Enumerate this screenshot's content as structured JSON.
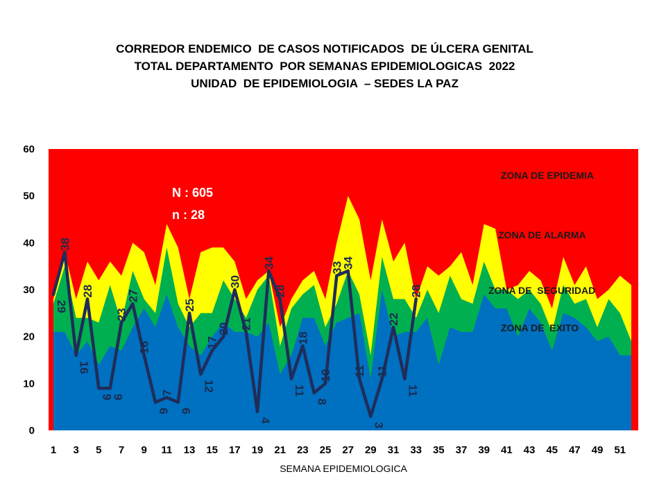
{
  "chart_data": {
    "type": "area",
    "title": [
      "CORREDOR ENDEMICO  DE CASOS NOTIFICADOS  DE ÚLCERA GENITAL",
      "TOTAL DEPARTAMENTO  POR SEMANAS EPIDEMIOLOGICAS  2022",
      "UNIDAD  DE EPIDEMIOLOGIA  – SEDES LA PAZ"
    ],
    "xlabel": "SEMANA EPIDEMIOLOGICA",
    "ylabel": "",
    "ylim": [
      0,
      60
    ],
    "yticks": [
      0,
      10,
      20,
      30,
      40,
      50,
      60
    ],
    "xticks": [
      1,
      3,
      5,
      7,
      9,
      11,
      13,
      15,
      17,
      19,
      21,
      23,
      25,
      27,
      29,
      31,
      33,
      35,
      37,
      39,
      41,
      43,
      45,
      47,
      49,
      51
    ],
    "weeks": [
      1,
      2,
      3,
      4,
      5,
      6,
      7,
      8,
      9,
      10,
      11,
      12,
      13,
      14,
      15,
      16,
      17,
      18,
      19,
      20,
      21,
      22,
      23,
      24,
      25,
      26,
      27,
      28,
      29,
      30,
      31,
      32,
      33,
      34,
      35,
      36,
      37,
      38,
      39,
      40,
      41,
      42,
      43,
      44,
      45,
      46,
      47,
      48,
      49,
      50,
      51,
      52
    ],
    "zones": [
      {
        "name": "ZONA DE  EXITO",
        "color": "#0070c0",
        "values": [
          21,
          21,
          16,
          19,
          14,
          18,
          17,
          22,
          26,
          22,
          29,
          22,
          18,
          16,
          20,
          23,
          21,
          21,
          20,
          23,
          12,
          16,
          24,
          24,
          18,
          23,
          24,
          25,
          11,
          30,
          20,
          21,
          21,
          24,
          14,
          22,
          21,
          21,
          29,
          26,
          26,
          20,
          26,
          23,
          17,
          25,
          24,
          22,
          19,
          20,
          16,
          16
        ]
      },
      {
        "name": "ZONA DE  SEGURIDAD",
        "color": "#00b050",
        "values": [
          27,
          35,
          24,
          24,
          23,
          31,
          23,
          34,
          28,
          25,
          39,
          27,
          22,
          25,
          25,
          32,
          28,
          24,
          30,
          33,
          18,
          26,
          29,
          31,
          22,
          27,
          34,
          29,
          16,
          37,
          28,
          28,
          24,
          30,
          25,
          33,
          28,
          27,
          36,
          30,
          30,
          28,
          30,
          27,
          21,
          31,
          27,
          28,
          22,
          28,
          25,
          19
        ]
      },
      {
        "name": "ZONA DE ALARMA",
        "color": "#ffff00",
        "values": [
          28,
          38,
          28,
          36,
          32,
          36,
          33,
          40,
          38,
          31,
          44,
          39,
          28,
          38,
          39,
          39,
          36,
          28,
          32,
          34,
          22,
          28,
          32,
          34,
          28,
          40,
          50,
          45,
          32,
          45,
          36,
          40,
          28,
          35,
          33,
          35,
          38,
          31,
          44,
          43,
          30,
          31,
          34,
          32,
          26,
          37,
          31,
          35,
          28,
          30,
          33,
          31
        ]
      },
      {
        "name": "ZONA DE EPIDEMIA",
        "color": "#ff0000",
        "values": []
      }
    ],
    "series": [
      {
        "name": "",
        "color": "#1f2d5a",
        "values": [
          29,
          38,
          16,
          28,
          9,
          9,
          23,
          27,
          16,
          6,
          7,
          6,
          25,
          12,
          17,
          20,
          30,
          21,
          4,
          34,
          28,
          11,
          18,
          8,
          10,
          33,
          34,
          11,
          3,
          11,
          22,
          11,
          28
        ]
      }
    ],
    "annotations": [
      "N : 605",
      "n : 28"
    ],
    "grid": false,
    "legend": "none"
  }
}
